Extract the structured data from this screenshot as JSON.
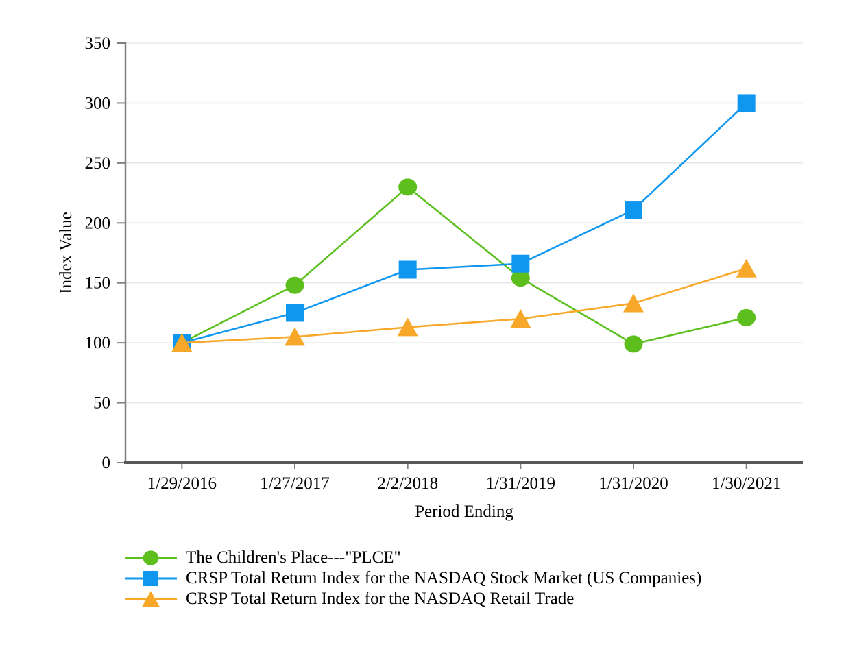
{
  "chart_data": {
    "type": "line",
    "title": "",
    "xlabel": "Period Ending",
    "ylabel": "Index Value",
    "x": [
      "1/29/2016",
      "1/27/2017",
      "2/2/2018",
      "1/31/2019",
      "1/31/2020",
      "1/30/2021"
    ],
    "ylim": [
      0,
      350
    ],
    "yticks": [
      0,
      50,
      100,
      150,
      200,
      250,
      300,
      350
    ],
    "grid": true,
    "legend_position": "bottom-left",
    "series": [
      {
        "name": "The Children's Place---\"PLCE\"",
        "marker": "circle",
        "color": "#5CBF1D",
        "values": [
          100,
          148,
          230,
          154,
          99,
          121
        ]
      },
      {
        "name": "CRSP Total Return Index for the NASDAQ Stock Market (US Companies)",
        "marker": "square",
        "color": "#0F97F0",
        "values": [
          100,
          125,
          161,
          166,
          211,
          300
        ]
      },
      {
        "name": "CRSP Total Return Index for the NASDAQ Retail Trade",
        "marker": "triangle",
        "color": "#F8A828",
        "values": [
          100,
          105,
          113,
          120,
          133,
          162
        ]
      }
    ]
  },
  "colors": {
    "background": "#FFFFFF",
    "gridline": "#E8E8E8",
    "y_axis_line": "#808080",
    "x_axis_line": "#595959",
    "tick": "#808080",
    "text": "#000000"
  }
}
